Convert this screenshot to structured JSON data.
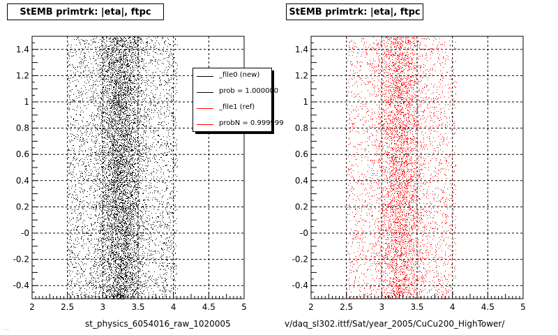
{
  "footer_text": "...",
  "chart_data": [
    {
      "type": "scatter",
      "title": "StEMB primtrk: |eta|, ftpc",
      "xlabel": "st_physics_6054016_raw_1020005",
      "ylabel": "",
      "xlim": [
        2,
        5
      ],
      "ylim": [
        -0.5,
        1.5
      ],
      "x_ticks": [
        "2",
        "2.5",
        "3",
        "3.5",
        "4",
        "4.5",
        "5"
      ],
      "y_ticks": [
        "-0.4",
        "-0.2",
        "-0",
        "0.2",
        "0.4",
        "0.6",
        "0.8",
        "1",
        "1.2",
        "1.4"
      ],
      "grid": true,
      "marker_color": "#000000",
      "point_density": {
        "x_range": [
          2.5,
          4.05
        ],
        "peak_region": [
          2.8,
          3.7
        ],
        "y_range": [
          -0.5,
          1.5
        ],
        "approx_points": 9000
      },
      "legend": {
        "placement": "top-right",
        "entries": [
          {
            "label": "_file0 (new)",
            "color": "#000000"
          },
          {
            "label": "prob = 1.000000",
            "color": "#000000"
          },
          {
            "label": "_file1 (ref)",
            "color": "#ff0000"
          },
          {
            "label": "probN = 0.999999",
            "color": "#ff0000"
          }
        ]
      }
    },
    {
      "type": "scatter",
      "title": "StEMB primtrk: |eta|, ftpc",
      "xlabel": "v/daq_sl302.ittf/Sat/year_2005/CuCu200_HighTower/",
      "ylabel": "",
      "xlim": [
        2,
        5
      ],
      "ylim": [
        -0.5,
        1.5
      ],
      "x_ticks": [
        "2",
        "2.5",
        "3",
        "3.5",
        "4",
        "4.5",
        "5"
      ],
      "y_ticks": [
        "-0.4",
        "-0.2",
        "-0",
        "0.2",
        "0.4",
        "0.6",
        "0.8",
        "1",
        "1.2",
        "1.4"
      ],
      "grid": true,
      "marker_color": "#ff0000",
      "point_density": {
        "x_range": [
          2.5,
          4.05
        ],
        "peak_region": [
          2.8,
          3.7
        ],
        "y_range": [
          -0.5,
          1.5
        ],
        "approx_points": 6000
      }
    }
  ]
}
